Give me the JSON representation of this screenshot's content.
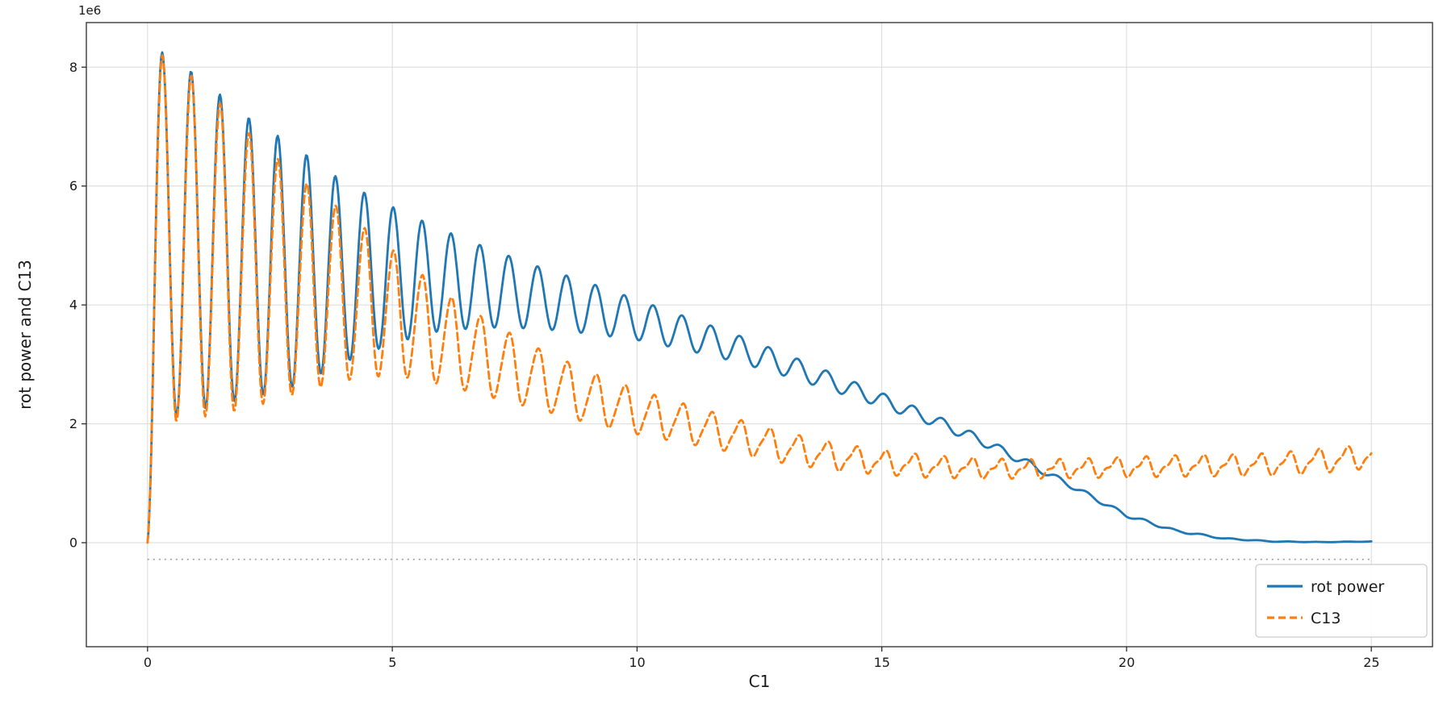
{
  "chart_data": {
    "type": "line",
    "title": "",
    "xlabel": "C1",
    "ylabel": "rot power and C13",
    "y_offset_label": "1e6",
    "y_unit": 1000000,
    "xlim": [
      -1.25,
      26.25
    ],
    "ylim": [
      -1750000,
      8750000
    ],
    "x_range": [
      0,
      25
    ],
    "xticks": [
      0,
      5,
      10,
      15,
      20,
      25
    ],
    "xtick_labels": [
      "0",
      "5",
      "10",
      "15",
      "20",
      "25"
    ],
    "yticks": [
      0,
      2000000,
      4000000,
      6000000,
      8000000
    ],
    "ytick_labels": [
      "0",
      "2",
      "4",
      "6",
      "8"
    ],
    "grid": true,
    "oscillation": {
      "period": 0.59,
      "peak_x": 0.3
    },
    "series": [
      {
        "name": "rot power",
        "color": "#1f77b4",
        "style": "solid",
        "envelope": {
          "x": [
            0,
            0.3,
            1,
            2,
            3,
            4,
            5,
            6,
            7,
            8,
            9,
            10,
            11,
            12,
            13,
            14,
            15,
            16,
            17,
            18,
            19,
            20,
            21,
            22,
            23,
            24,
            25
          ],
          "mid": [
            4.1,
            5.15,
            5.05,
            4.8,
            4.65,
            4.55,
            4.5,
            4.42,
            4.28,
            4.12,
            3.95,
            3.75,
            3.52,
            3.28,
            3.0,
            2.7,
            2.4,
            2.08,
            1.73,
            1.33,
            0.9,
            0.46,
            0.2,
            0.07,
            0.02,
            0.01,
            0.02
          ],
          "amp": [
            4.1,
            3.1,
            2.82,
            2.38,
            2.02,
            1.52,
            1.15,
            0.85,
            0.66,
            0.52,
            0.43,
            0.34,
            0.28,
            0.23,
            0.19,
            0.15,
            0.12,
            0.1,
            0.08,
            0.06,
            0.04,
            0.03,
            0.02,
            0.01,
            0.005,
            0.003,
            0.003
          ]
        }
      },
      {
        "name": "C13",
        "color": "#ff7f0e",
        "style": "dashed",
        "detail": {
          "amp": 0.06,
          "harmonic": 2
        },
        "envelope": {
          "x": [
            0,
            0.3,
            1,
            2,
            3,
            4,
            5,
            6,
            7,
            8,
            9,
            10,
            11,
            12,
            13,
            14,
            15,
            16,
            17,
            18,
            19,
            20,
            21,
            22,
            23,
            24,
            25
          ],
          "mid": [
            4.05,
            5.1,
            4.95,
            4.6,
            4.35,
            4.15,
            3.88,
            3.45,
            3.08,
            2.75,
            2.45,
            2.2,
            2.0,
            1.8,
            1.6,
            1.45,
            1.35,
            1.28,
            1.25,
            1.24,
            1.25,
            1.27,
            1.29,
            1.3,
            1.32,
            1.38,
            1.45
          ],
          "amp": [
            4.05,
            3.1,
            2.85,
            2.35,
            1.85,
            1.42,
            1.05,
            0.78,
            0.62,
            0.5,
            0.42,
            0.36,
            0.31,
            0.27,
            0.24,
            0.21,
            0.18,
            0.16,
            0.14,
            0.13,
            0.13,
            0.14,
            0.15,
            0.15,
            0.16,
            0.18,
            0.17
          ]
        }
      }
    ],
    "reference_line": {
      "y": -280000,
      "style": "dotted",
      "color": "#9e9e9e"
    },
    "legend": {
      "position": "lower right",
      "entries": [
        {
          "label": "rot power",
          "color": "#1f77b4",
          "style": "solid"
        },
        {
          "label": "C13",
          "color": "#ff7f0e",
          "style": "dashed"
        }
      ]
    },
    "colors": {
      "grid": "#d9d9d9",
      "spine": "#2b2b2b",
      "text": "#1a1a1a",
      "background": "#ffffff"
    }
  }
}
